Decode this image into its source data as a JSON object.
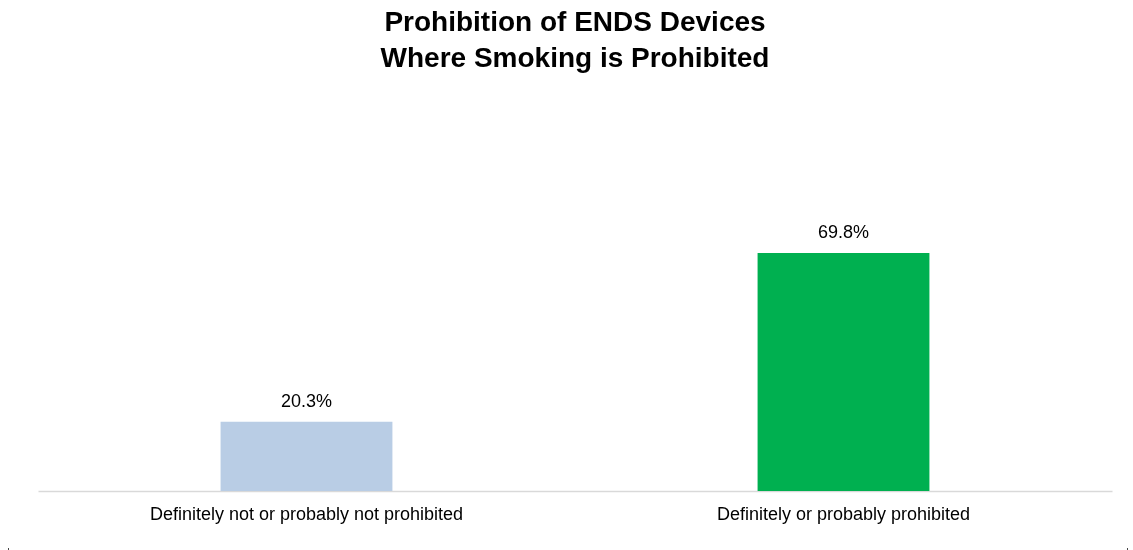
{
  "chart_data": {
    "type": "bar",
    "title": [
      "Prohibition of ENDS Devices",
      "Where Smoking is Prohibited"
    ],
    "categories": [
      "Definitely not or probably not prohibited",
      "Definitely or probably prohibited"
    ],
    "values": [
      20.3,
      69.8
    ],
    "value_labels": [
      "20.3%",
      "69.8%"
    ],
    "colors": [
      "#b9cde5",
      "#00b050"
    ],
    "tick_labels": "x"
  }
}
